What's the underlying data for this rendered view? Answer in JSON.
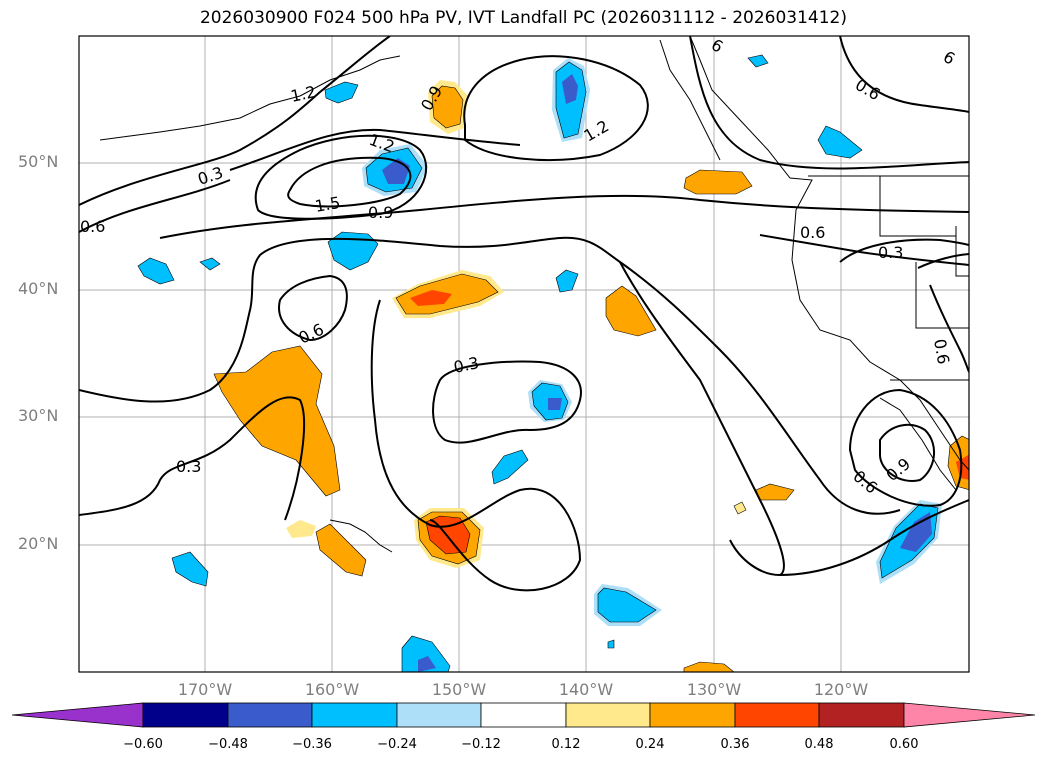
{
  "title": "2026030900 F024 500 hPa PV, IVT Landfall PC (2026031112 - 2026031412)",
  "lat_labels": [
    "50°N",
    "40°N",
    "30°N",
    "20°N"
  ],
  "lon_labels": [
    "170°W",
    "160°W",
    "150°W",
    "140°W",
    "130°W",
    "120°W"
  ],
  "contour_labels": [
    "0.3",
    "0.3",
    "0.3",
    "0.3",
    "0.6",
    "0.6",
    "0.6",
    "0.6",
    "0.6",
    "0.6",
    "0.9",
    "0.9",
    "0.9",
    "1.2",
    "1.2",
    "1.2",
    "1.5",
    "6",
    "6"
  ],
  "colorbar": {
    "ticks": [
      "−0.60",
      "−0.48",
      "−0.36",
      "−0.24",
      "−0.12",
      "0.12",
      "0.24",
      "0.36",
      "0.48",
      "0.60"
    ],
    "colors": {
      "under": "#9932CC",
      "lt_-0.48": "#00008B",
      "lt_-0.36": "#3A5BCC",
      "lt_-0.24": "#00BFFF",
      "lt_-0.12": "#ADDFF8",
      "neutral": "#ffffff",
      "lt_0.24": "#FFE98C",
      "lt_0.36": "#FFA500",
      "lt_0.48": "#FF4500",
      "lt_0.60": "#B22222",
      "over": "#FF85A8"
    }
  },
  "map_colors": {
    "contour": "#000000",
    "grid": "#b0b0b0",
    "coast": "#000000"
  }
}
